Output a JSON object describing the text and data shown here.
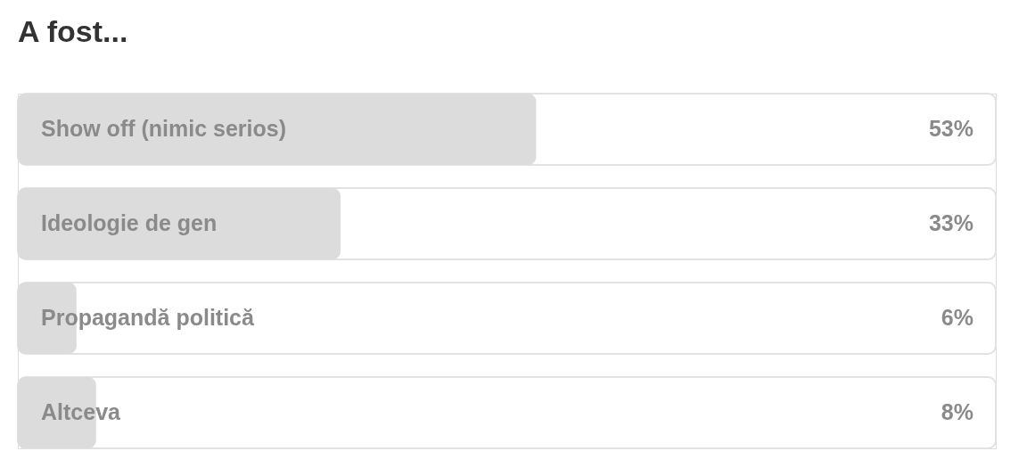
{
  "chart_data": {
    "type": "bar",
    "orientation": "horizontal",
    "title": "A fost...",
    "categories": [
      "Show off (nimic serios)",
      "Ideologie de gen",
      "Propagandă politică",
      "Altceva"
    ],
    "values": [
      53,
      33,
      6,
      8
    ],
    "value_labels": [
      "53%",
      "33%",
      "6%",
      "8%"
    ],
    "color": "#dcdcdc",
    "xlim": [
      0,
      100
    ],
    "grid": false
  }
}
